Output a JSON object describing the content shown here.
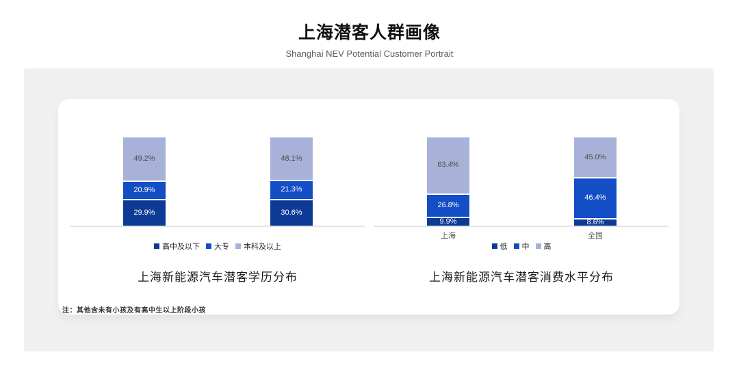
{
  "header": {
    "title": "上海潜客人群画像",
    "subtitle": "Shanghai NEV Potential Customer Portrait"
  },
  "note": "注：其他含未有小孩及有高中生以上阶段小孩",
  "colors": {
    "dark": "#0D3A94",
    "medium": "#144EC7",
    "light": "#A8B2D8",
    "axis": "#E3E3E3",
    "panel_bg": "#F0F0F0",
    "card_bg": "#FFFFFF",
    "label_on_light": "#4D4D4D",
    "label_on_blue": "#FFFFFF"
  },
  "chart_data": [
    {
      "type": "bar",
      "stacked": true,
      "title": "上海新能源汽车潜客学历分布",
      "categories": [
        "",
        ""
      ],
      "series": [
        {
          "name": "高中及以下",
          "color_key": "dark",
          "values": [
            29.9,
            30.6
          ]
        },
        {
          "name": "大专",
          "color_key": "medium",
          "values": [
            20.9,
            21.3
          ]
        },
        {
          "name": "本科及以上",
          "color_key": "light",
          "values": [
            49.2,
            48.1
          ]
        }
      ],
      "ylim": [
        0,
        100
      ],
      "grid": false,
      "legend_position": "bottom",
      "value_label_format": "percent_1dp"
    },
    {
      "type": "bar",
      "stacked": true,
      "title": "上海新能源汽车潜客消费水平分布",
      "categories": [
        "上海",
        "全国"
      ],
      "series": [
        {
          "name": "低",
          "color_key": "dark",
          "values": [
            9.9,
            8.6
          ]
        },
        {
          "name": "中",
          "color_key": "medium",
          "values": [
            26.8,
            46.4
          ]
        },
        {
          "name": "高",
          "color_key": "light",
          "values": [
            63.4,
            45.0
          ]
        }
      ],
      "ylim": [
        0,
        100
      ],
      "grid": false,
      "legend_position": "bottom",
      "value_label_format": "percent_1dp"
    }
  ]
}
